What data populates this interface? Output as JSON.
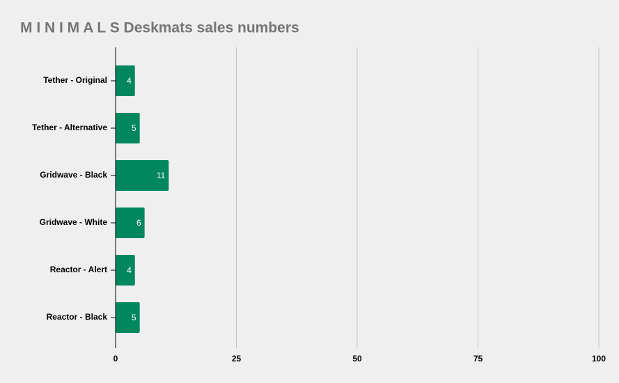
{
  "chart_data": {
    "type": "bar",
    "orientation": "horizontal",
    "title": "M I N I M A L S Deskmats sales numbers",
    "categories": [
      "Tether - Original",
      "Tether - Alternative",
      "Gridwave - Black",
      "Gridwave - White",
      "Reactor - Alert",
      "Reactor - Black"
    ],
    "values": [
      4,
      5,
      11,
      6,
      4,
      5
    ],
    "color": "#00875e",
    "xlim": [
      0,
      100
    ],
    "xticks": [
      0,
      25,
      50,
      75,
      100
    ],
    "grid": true
  }
}
